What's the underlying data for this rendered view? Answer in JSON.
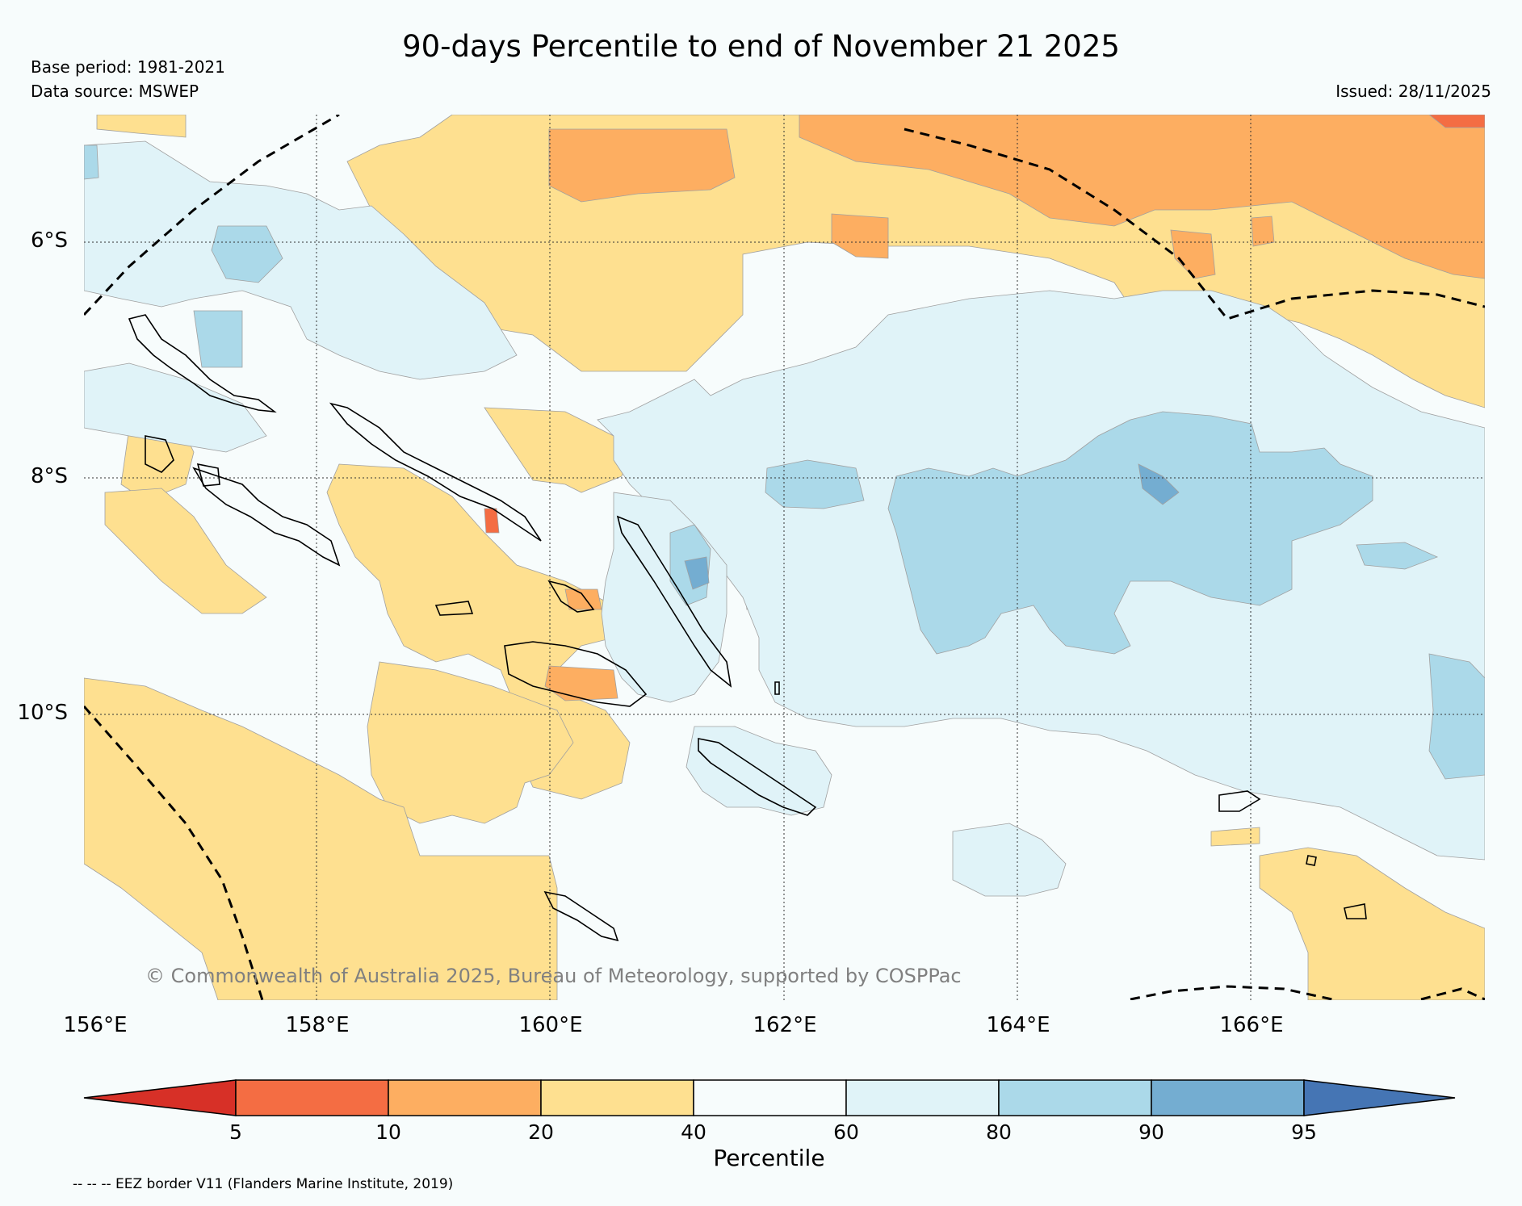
{
  "header": {
    "title": "90-days Percentile to end of November 21 2025",
    "base_period": "Base period: 1981-2021",
    "data_source": "Data source: MSWEP",
    "issued": "Issued: 28/11/2025"
  },
  "map": {
    "lat_labels": [
      "6°S",
      "8°S",
      "10°S"
    ],
    "lon_labels": [
      "156°E",
      "158°E",
      "160°E",
      "162°E",
      "164°E",
      "166°E"
    ],
    "copyright": "© Commonwealth of Australia 2025, Bureau of Meteorology, supported by COSPPac",
    "eez_note": "-- -- -- EEZ border V11 (Flanders Marine Institute, 2019)"
  },
  "legend": {
    "title": "Percentile",
    "ticks": [
      "5",
      "10",
      "20",
      "40",
      "60",
      "80",
      "90",
      "95"
    ],
    "colors": [
      "#d73027",
      "#f46d43",
      "#fdae61",
      "#fee090",
      "#f7fcfc",
      "#e0f3f8",
      "#abd9e9",
      "#74add1",
      "#4575b4"
    ]
  },
  "palette": {
    "p5_10": "#f46d43",
    "p10_20": "#fdae61",
    "p20_40": "#fee090",
    "p40_60": "#f7fcfc",
    "p60_80": "#e0f3f8",
    "p80_90": "#abd9e9",
    "p90_95": "#74add1"
  }
}
